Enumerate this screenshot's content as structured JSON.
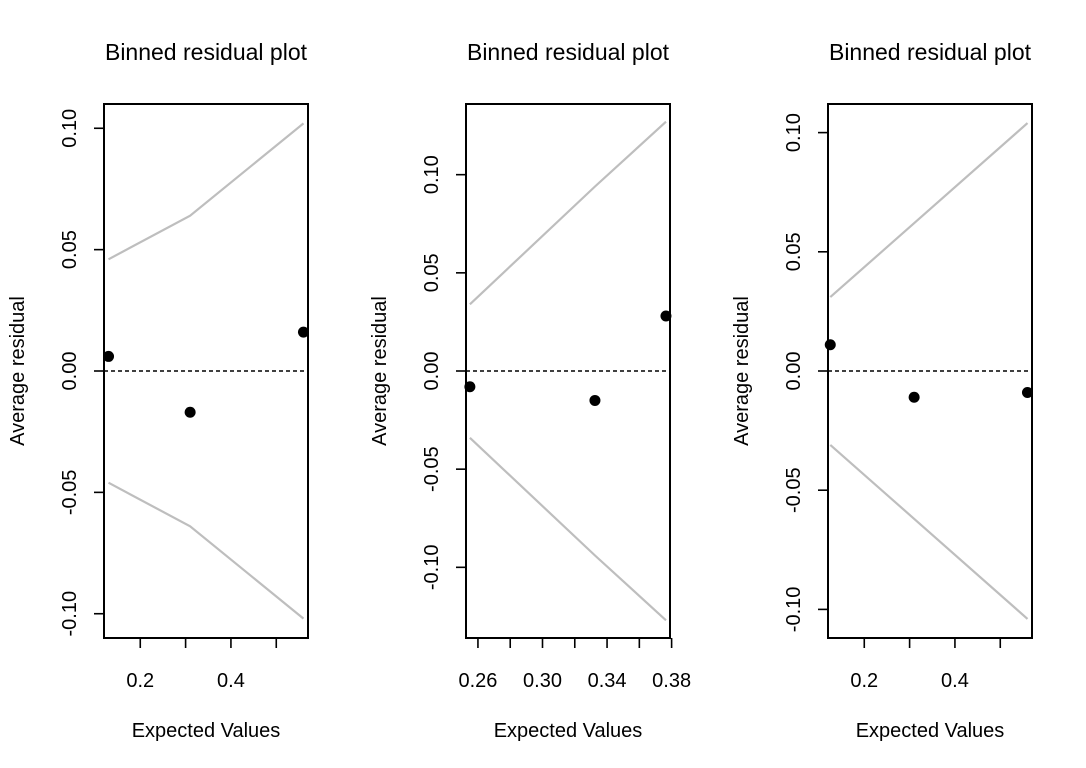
{
  "chart_data": [
    {
      "type": "scatter",
      "title": "Binned residual plot",
      "xlabel": "Expected Values",
      "ylabel": "Average residual",
      "xlim": [
        0.12,
        0.57
      ],
      "ylim": [
        -0.11,
        0.11
      ],
      "xticks": [
        0.2,
        0.4
      ],
      "xtick_minor": [
        0.3,
        0.5
      ],
      "yticks": [
        -0.1,
        -0.05,
        0.0,
        0.05,
        0.1
      ],
      "ytick_labels": [
        "-0.10",
        "-0.05",
        "0.00",
        "0.05",
        "0.10"
      ],
      "points": [
        {
          "x": 0.13,
          "y": 0.006
        },
        {
          "x": 0.31,
          "y": -0.017
        },
        {
          "x": 0.56,
          "y": 0.016
        }
      ],
      "upper_bound": [
        {
          "x": 0.13,
          "y": 0.046
        },
        {
          "x": 0.31,
          "y": 0.064
        },
        {
          "x": 0.56,
          "y": 0.102
        }
      ],
      "lower_bound": [
        {
          "x": 0.13,
          "y": -0.046
        },
        {
          "x": 0.31,
          "y": -0.064
        },
        {
          "x": 0.56,
          "y": -0.102
        }
      ],
      "reference_line": 0,
      "colors": {
        "points": "#000000",
        "bounds": "#bebebe",
        "reference": "#000000"
      }
    },
    {
      "type": "scatter",
      "title": "Binned residual plot",
      "xlabel": "Expected Values",
      "ylabel": "Average residual",
      "xlim": [
        0.2526,
        0.379
      ],
      "ylim": [
        -0.136,
        0.136
      ],
      "xticks": [
        0.26,
        0.3,
        0.34,
        0.38
      ],
      "xtick_minor": [
        0.28,
        0.32,
        0.36
      ],
      "yticks": [
        -0.1,
        -0.05,
        0.0,
        0.05,
        0.1
      ],
      "ytick_labels": [
        "-0.10",
        "-0.05",
        "0.00",
        "0.05",
        "0.10"
      ],
      "points": [
        {
          "x": 0.255,
          "y": -0.008
        },
        {
          "x": 0.3325,
          "y": -0.015
        },
        {
          "x": 0.3765,
          "y": 0.028
        }
      ],
      "upper_bound": [
        {
          "x": 0.255,
          "y": 0.034
        },
        {
          "x": 0.3325,
          "y": 0.094
        },
        {
          "x": 0.3765,
          "y": 0.127
        }
      ],
      "lower_bound": [
        {
          "x": 0.255,
          "y": -0.034
        },
        {
          "x": 0.3325,
          "y": -0.094
        },
        {
          "x": 0.3765,
          "y": -0.127
        }
      ],
      "reference_line": 0,
      "colors": {
        "points": "#000000",
        "bounds": "#bebebe",
        "reference": "#000000"
      }
    },
    {
      "type": "scatter",
      "title": "Binned residual plot",
      "xlabel": "Expected Values",
      "ylabel": "Average residual",
      "xlim": [
        0.12,
        0.57
      ],
      "ylim": [
        -0.112,
        0.112
      ],
      "xticks": [
        0.2,
        0.4
      ],
      "xtick_minor": [
        0.3,
        0.5
      ],
      "yticks": [
        -0.1,
        -0.05,
        0.0,
        0.05,
        0.1
      ],
      "ytick_labels": [
        "-0.10",
        "-0.05",
        "0.00",
        "0.05",
        "0.10"
      ],
      "points": [
        {
          "x": 0.125,
          "y": 0.011
        },
        {
          "x": 0.31,
          "y": -0.011
        },
        {
          "x": 0.56,
          "y": -0.009
        }
      ],
      "upper_bound": [
        {
          "x": 0.125,
          "y": 0.031
        },
        {
          "x": 0.31,
          "y": 0.062
        },
        {
          "x": 0.56,
          "y": 0.104
        }
      ],
      "lower_bound": [
        {
          "x": 0.125,
          "y": -0.031
        },
        {
          "x": 0.31,
          "y": -0.062
        },
        {
          "x": 0.56,
          "y": -0.104
        }
      ],
      "reference_line": 0,
      "colors": {
        "points": "#000000",
        "bounds": "#bebebe",
        "reference": "#000000"
      }
    }
  ]
}
